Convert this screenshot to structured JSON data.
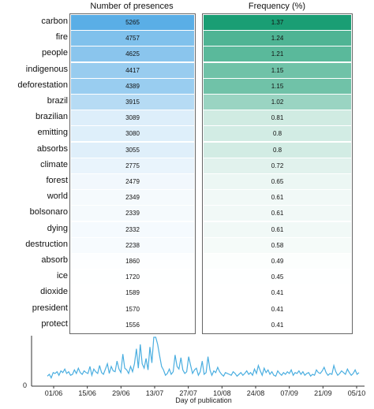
{
  "chart_data": [
    {
      "type": "heatmap",
      "title": "Number of presences",
      "categories": [
        "carbon",
        "fire",
        "people",
        "indigenous",
        "deforestation",
        "brazil",
        "brazilian",
        "emitting",
        "absorbs",
        "climate",
        "forest",
        "world",
        "bolsonaro",
        "dying",
        "destruction",
        "absorb",
        "ice",
        "dioxide",
        "president",
        "protect"
      ],
      "values": [
        5265,
        4757,
        4625,
        4417,
        4389,
        3915,
        3089,
        3080,
        3055,
        2775,
        2479,
        2349,
        2339,
        2332,
        2238,
        1860,
        1720,
        1589,
        1570,
        1556
      ],
      "color": "#5aaee6"
    },
    {
      "type": "heatmap",
      "title": "Frequency (%)",
      "categories": [
        "carbon",
        "fire",
        "people",
        "indigenous",
        "deforestation",
        "brazil",
        "brazilian",
        "emitting",
        "absorbs",
        "climate",
        "forest",
        "world",
        "bolsonaro",
        "dying",
        "destruction",
        "absorb",
        "ice",
        "dioxide",
        "president",
        "protect"
      ],
      "values": [
        1.37,
        1.24,
        1.21,
        1.15,
        1.15,
        1.02,
        0.81,
        0.8,
        0.8,
        0.72,
        0.65,
        0.61,
        0.61,
        0.61,
        0.58,
        0.49,
        0.45,
        0.41,
        0.41,
        0.41
      ],
      "color": "#1a9e74"
    },
    {
      "type": "line",
      "xlabel": "Day of publication",
      "ylabel": "",
      "ytick_labels": [
        "0"
      ],
      "x_tick_labels": [
        "01/06",
        "15/06",
        "29/06",
        "13/07",
        "27/07",
        "10/08",
        "24/08",
        "07/09",
        "21/09",
        "05/10"
      ],
      "ylim": [
        0,
        100
      ],
      "series": [
        {
          "values": [
            12,
            16,
            8,
            20,
            18,
            22,
            14,
            24,
            20,
            28,
            18,
            22,
            14,
            16,
            26,
            18,
            30,
            20,
            16,
            24,
            20,
            18,
            34,
            14,
            28,
            22,
            18,
            36,
            20,
            16,
            28,
            40,
            18,
            34,
            24,
            22,
            46,
            28,
            20,
            62,
            30,
            26,
            18,
            34,
            22,
            40,
            74,
            30,
            84,
            40,
            30,
            52,
            26,
            78,
            42,
            100,
            100,
            84,
            58,
            34,
            26,
            14,
            18,
            28,
            16,
            22,
            60,
            34,
            28,
            54,
            26,
            18,
            22,
            56,
            36,
            18,
            26,
            30,
            14,
            22,
            46,
            16,
            20,
            56,
            26,
            14,
            24,
            20,
            32,
            22,
            16,
            12,
            20,
            18,
            16,
            14,
            22,
            18,
            12,
            16,
            20,
            14,
            18,
            24,
            16,
            20,
            14,
            28,
            18,
            36,
            24,
            14,
            30,
            20,
            26,
            16,
            22,
            14,
            12,
            24,
            18,
            14,
            20,
            16,
            22,
            18,
            26,
            14,
            20,
            18,
            24,
            16,
            22,
            14,
            18,
            20,
            12,
            16,
            14,
            26,
            20,
            18,
            24,
            32,
            20,
            14,
            18,
            16,
            36,
            22,
            14,
            18,
            24,
            20,
            16,
            28,
            20,
            14,
            18,
            26,
            16,
            20
          ]
        }
      ]
    }
  ]
}
